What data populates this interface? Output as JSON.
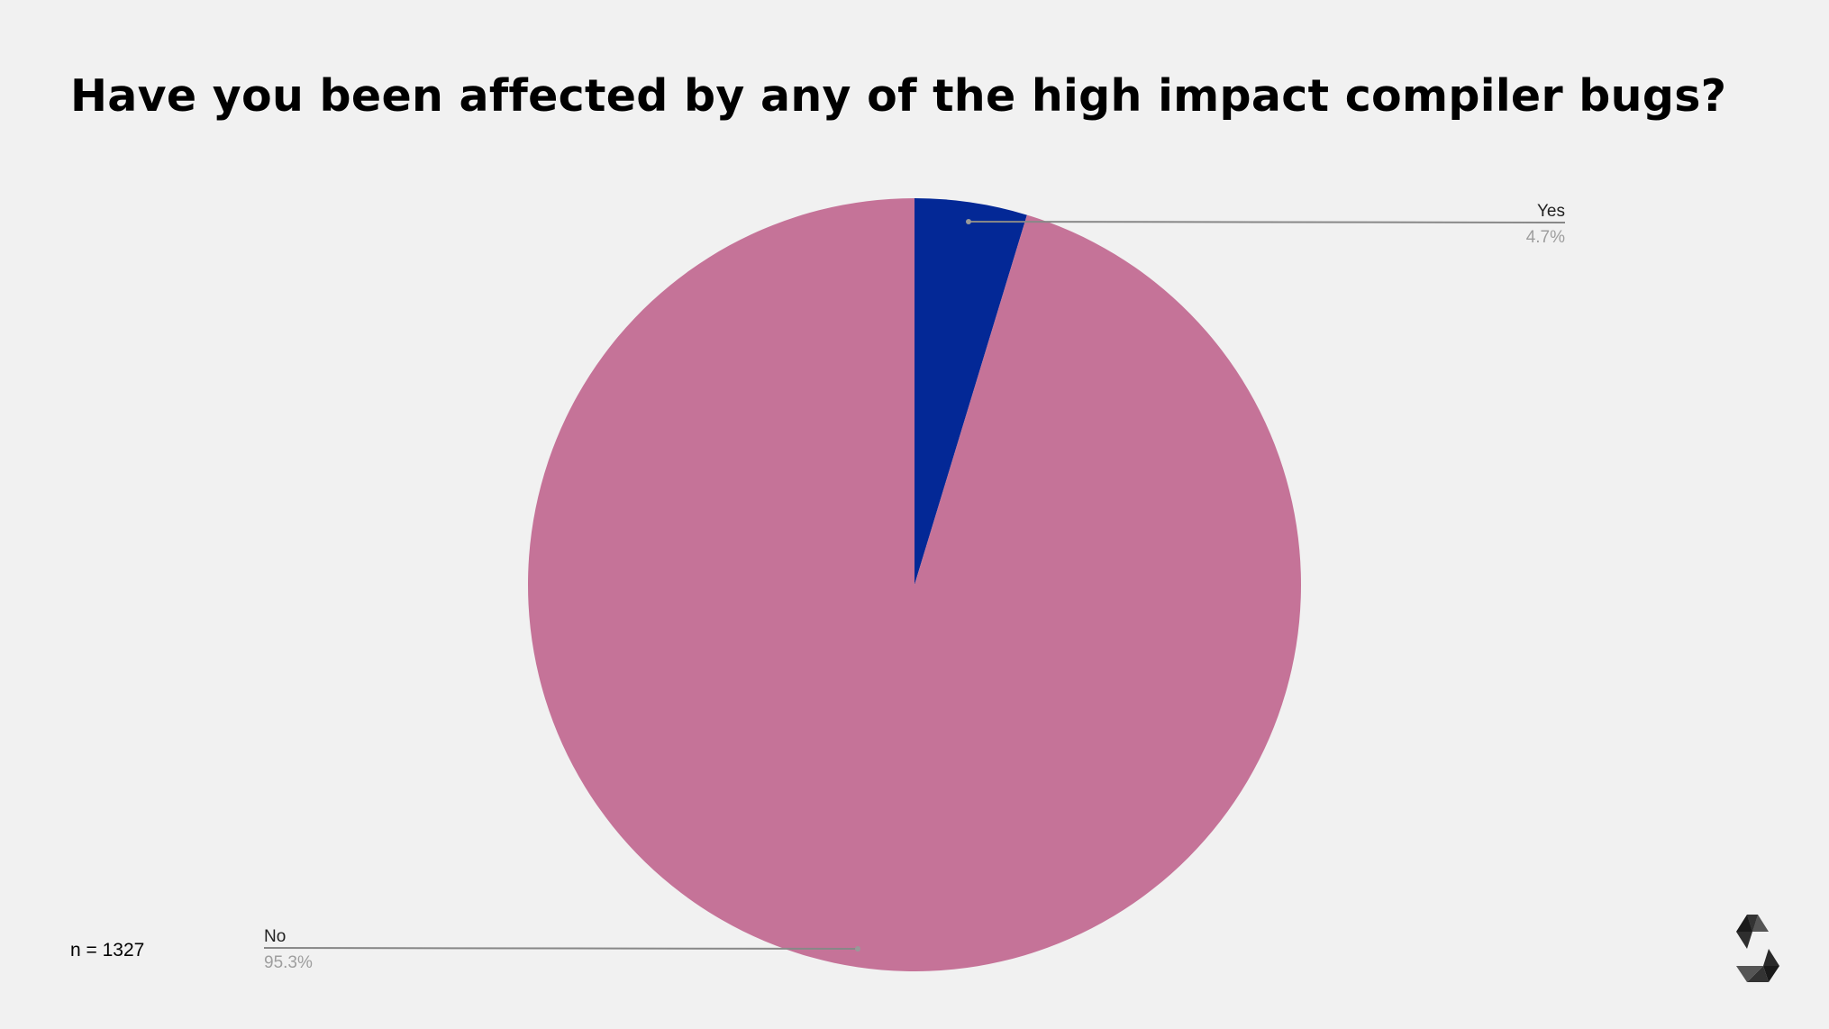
{
  "title": "Have you been affected by any of the high impact compiler bugs?",
  "sample_size_label": "n = 1327",
  "logo": {
    "icon": "solidity-logo-icon"
  },
  "colors": {
    "background": "#f1f1f1",
    "yes": "#032896",
    "no": "#c57398",
    "leader_line": "#888888",
    "label": "#222222",
    "percent": "#9e9e9e"
  },
  "chart_data": {
    "type": "pie",
    "title": "Have you been affected by any of the high impact compiler bugs?",
    "n": 1327,
    "start_angle_deg": 0,
    "direction": "clockwise",
    "legend_position": "leader-line labels",
    "slices": [
      {
        "label": "Yes",
        "value": 4.7,
        "display": "4.7%",
        "color": "#032896"
      },
      {
        "label": "No",
        "value": 95.3,
        "display": "95.3%",
        "color": "#c57398"
      }
    ]
  }
}
